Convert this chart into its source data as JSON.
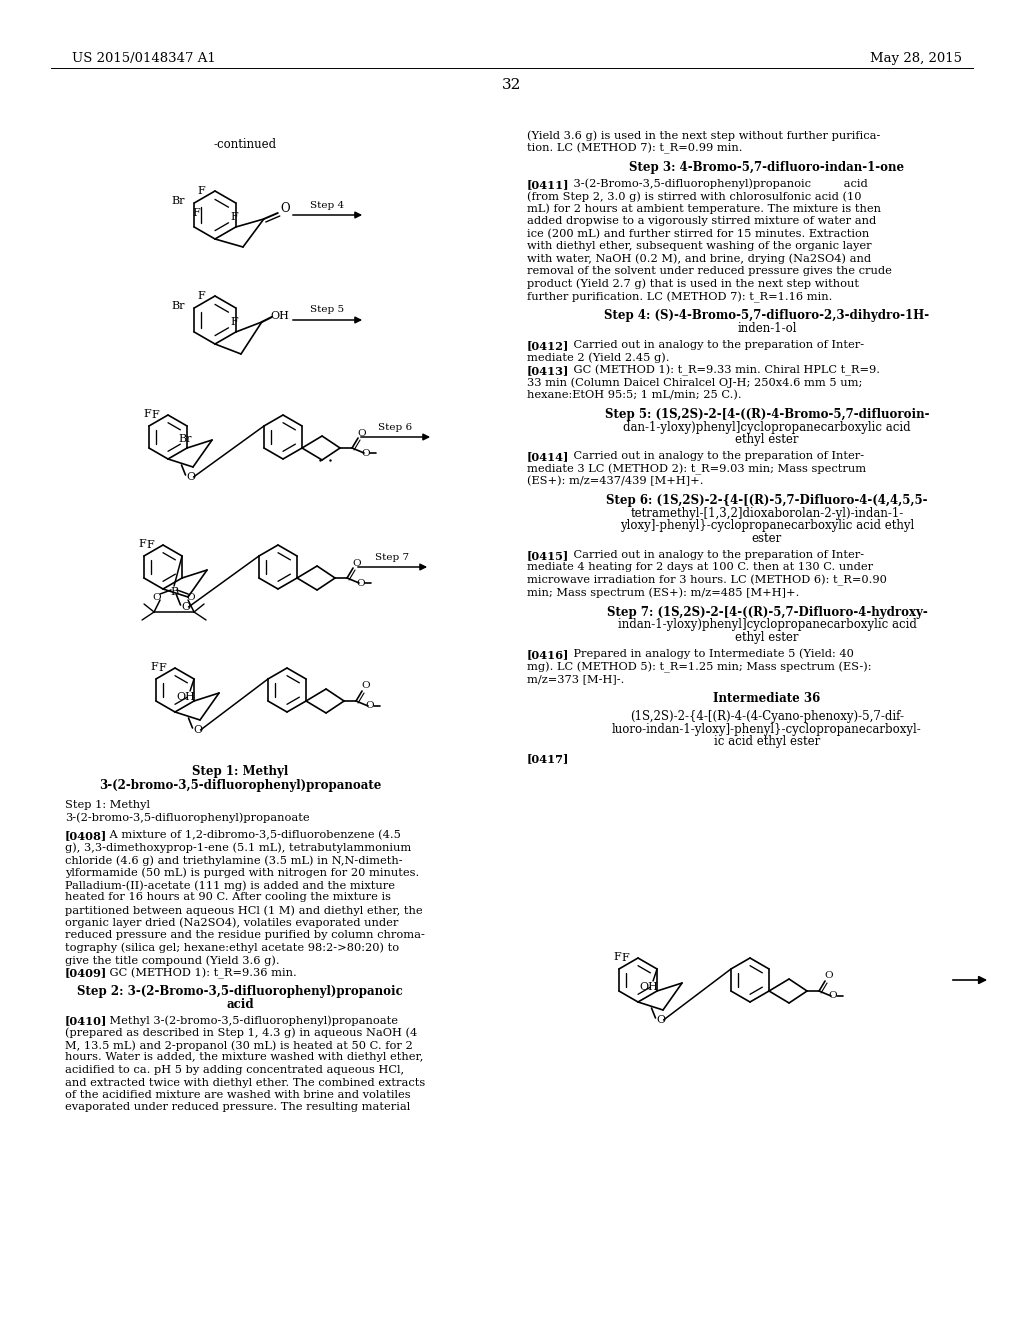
{
  "bg_color": "#ffffff",
  "header_left": "US 2015/0148347 A1",
  "header_right": "May 28, 2015",
  "page_number": "32",
  "right_col_lines": [
    "(Yield 3.6 g) is used in the next step without further purifica-",
    "tion. LC (METHOD 7): t_R=0.99 min.",
    "",
    "Step 3: 4-Bromo-5,7-difluoro-indan-1-one",
    "",
    "[0411]    3-(2-Bromo-3,5-difluorophenyl)propanoic         acid",
    "(from Step 2, 3.0 g) is stirred with chlorosulfonic acid (10",
    "mL) for 2 hours at ambient temperature. The mixture is then",
    "added dropwise to a vigorously stirred mixture of water and",
    "ice (200 mL) and further stirred for 15 minutes. Extraction",
    "with diethyl ether, subsequent washing of the organic layer",
    "with water, NaOH (0.2 M), and brine, drying (Na2SO4) and",
    "removal of the solvent under reduced pressure gives the crude",
    "product (Yield 2.7 g) that is used in the next step without",
    "further purification. LC (METHOD 7): t_R=1.16 min.",
    "",
    "Step 4: (S)-4-Bromo-5,7-difluoro-2,3-dihydro-1H-",
    "inden-1-ol",
    "",
    "[0412]    Carried out in analogy to the preparation of Inter-",
    "mediate 2 (Yield 2.45 g).",
    "[0413]    GC (METHOD 1): t_R=9.33 min. Chiral HPLC t_R=9.",
    "33 min (Column Daicel Chiralcel OJ-H; 250x4.6 mm 5 um;",
    "hexane:EtOH 95:5; 1 mL/min; 25 C.).",
    "",
    "Step 5: (1S,2S)-2-[4-((R)-4-Bromo-5,7-difluoroin-",
    "dan-1-yloxy)phenyl]cyclopropanecarboxylic acid",
    "ethyl ester",
    "",
    "[0414]    Carried out in analogy to the preparation of Inter-",
    "mediate 3 LC (METHOD 2): t_R=9.03 min; Mass spectrum",
    "(ES+): m/z=437/439 [M+H]+.",
    "",
    "Step 6: (1S,2S)-2-{4-[(R)-5,7-Difluoro-4-(4,4,5,5-",
    "tetramethyl-[1,3,2]dioxaborolan-2-yl)-indan-1-",
    "yloxy]-phenyl}-cyclopropanecarboxylic acid ethyl",
    "ester",
    "",
    "[0415]    Carried out in analogy to the preparation of Inter-",
    "mediate 4 heating for 2 days at 100 C. then at 130 C. under",
    "microwave irradiation for 3 hours. LC (METHOD 6): t_R=0.90",
    "min; Mass spectrum (ES+): m/z=485 [M+H]+.",
    "",
    "Step 7: (1S,2S)-2-[4-((R)-5,7-Difluoro-4-hydroxy-",
    "indan-1-yloxy)phenyl]cyclopropanecarboxylic acid",
    "ethyl ester",
    "",
    "[0416]    Prepared in analogy to Intermediate 5 (Yield: 40",
    "mg). LC (METHOD 5): t_R=1.25 min; Mass spectrum (ES-):",
    "m/z=373 [M-H]-.",
    "",
    "Intermediate 36",
    "",
    "(1S,2S)-2-{4-[(R)-4-(4-Cyano-phenoxy)-5,7-dif-",
    "luoro-indan-1-yloxy]-phenyl}-cyclopropanecarboxyl-",
    "ic acid ethyl ester",
    "",
    "[0417]"
  ],
  "left_col_lines": [
    "Step 1: Methyl",
    "3-(2-bromo-3,5-difluorophenyl)propanoate",
    "",
    "[0408]    A mixture of 1,2-dibromo-3,5-difluorobenzene (4.5",
    "g), 3,3-dimethoxyprop-1-ene (5.1 mL), tetrabutylammonium",
    "chloride (4.6 g) and triethylamine (3.5 mL) in N,N-dimeth-",
    "ylformamide (50 mL) is purged with nitrogen for 20 minutes.",
    "Palladium-(II)-acetate (111 mg) is added and the mixture",
    "heated for 16 hours at 90 C. After cooling the mixture is",
    "partitioned between aqueous HCl (1 M) and diethyl ether, the",
    "organic layer dried (Na2SO4), volatiles evaporated under",
    "reduced pressure and the residue purified by column chroma-",
    "tography (silica gel; hexane:ethyl acetate 98:2->80:20) to",
    "give the title compound (Yield 3.6 g).",
    "[0409]    GC (METHOD 1): t_R=9.36 min.",
    "",
    "Step 2: 3-(2-Bromo-3,5-difluorophenyl)propanoic",
    "acid",
    "",
    "[0410]    Methyl 3-(2-bromo-3,5-difluorophenyl)propanoate",
    "(prepared as described in Step 1, 4.3 g) in aqueous NaOH (4",
    "M, 13.5 mL) and 2-propanol (30 mL) is heated at 50 C. for 2",
    "hours. Water is added, the mixture washed with diethyl ether,",
    "acidified to ca. pH 5 by adding concentrated aqueous HCl,",
    "and extracted twice with diethyl ether. The combined extracts",
    "of the acidified mixture are washed with brine and volatiles",
    "evaporated under reduced pressure. The resulting material"
  ]
}
